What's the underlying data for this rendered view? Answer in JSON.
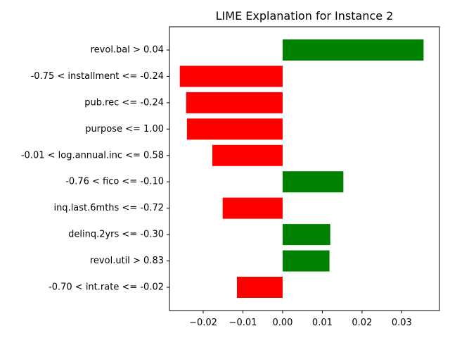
{
  "chart_data": {
    "type": "bar",
    "orientation": "horizontal",
    "title": "LIME Explanation for Instance 2",
    "xlabel": "",
    "ylabel": "",
    "xlim": [
      -0.0285,
      0.0395
    ],
    "xticks": [
      -0.02,
      -0.01,
      0.0,
      0.01,
      0.02,
      0.03
    ],
    "xtick_labels": [
      "−0.02",
      "−0.01",
      "0.00",
      "0.01",
      "0.02",
      "0.03"
    ],
    "grid": false,
    "categories": [
      "revol.bal > 0.04",
      "-0.75 < installment <= -0.24",
      "pub.rec <= -0.24",
      "purpose <= 1.00",
      "-0.01 < log.annual.inc <= 0.58",
      "-0.76 < fico <= -0.10",
      "inq.last.6mths <= -0.72",
      "delinq.2yrs <= -0.30",
      "revol.util > 0.83",
      "-0.70 < int.rate <= -0.02"
    ],
    "values": [
      0.0355,
      -0.0259,
      -0.0243,
      -0.0241,
      -0.0177,
      0.0153,
      -0.0151,
      0.012,
      0.0118,
      -0.0115
    ],
    "colors": {
      "positive": "#008000",
      "negative": "#ff0000"
    }
  }
}
